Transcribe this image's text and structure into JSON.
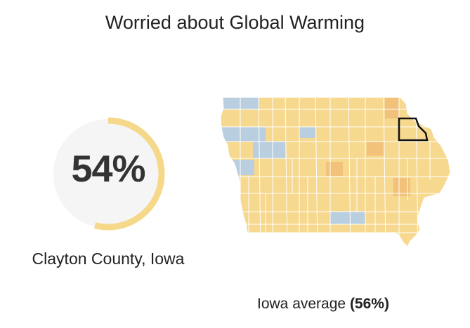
{
  "title": "Worried about Global Warming",
  "gauge": {
    "percent": 54,
    "label": "54%",
    "ring_color": "#f6d88a",
    "track_color": "#f4f5f4"
  },
  "county": {
    "name": "Clayton County, Iowa"
  },
  "state_average": {
    "prefix": "Iowa average",
    "value": "(56%)"
  },
  "map": {
    "state": "Iowa",
    "highlighted_county": "Clayton",
    "colors": {
      "base": "#f6d88e",
      "higher": "#f2c27b",
      "lower": "#b9cfe0",
      "border": "#ffffff",
      "highlight_outline": "#111111"
    }
  }
}
